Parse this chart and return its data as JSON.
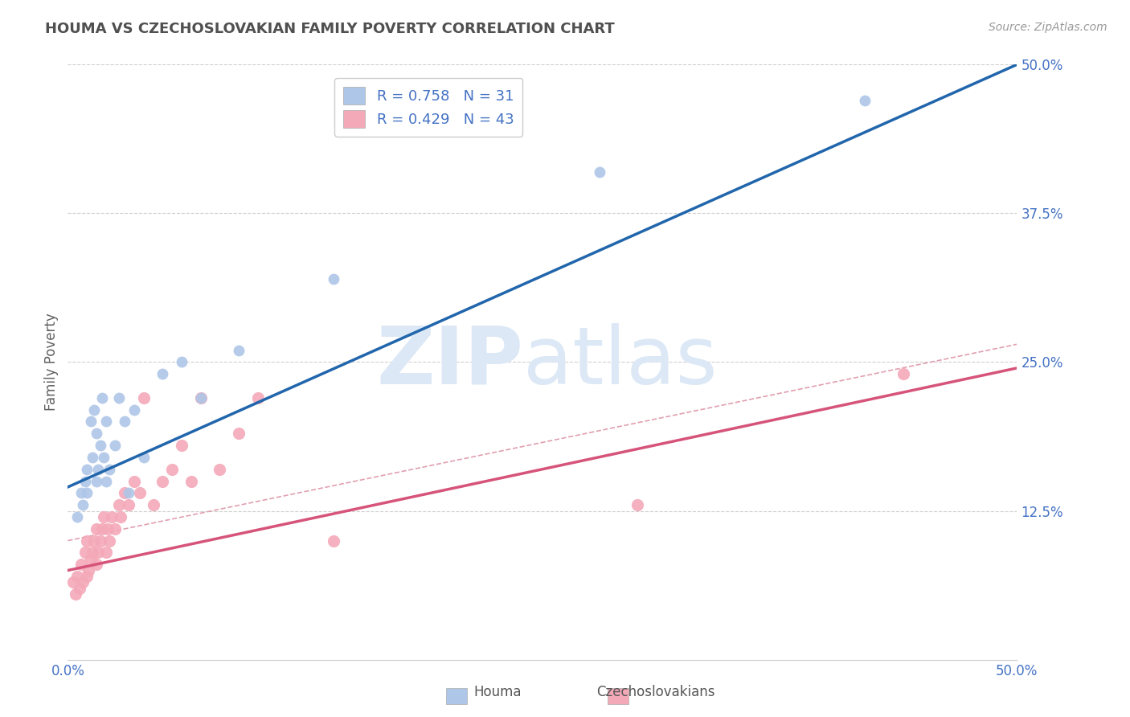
{
  "title": "HOUMA VS CZECHOSLOVAKIAN FAMILY POVERTY CORRELATION CHART",
  "source_text": "Source: ZipAtlas.com",
  "ylabel": "Family Poverty",
  "xlim": [
    0.0,
    0.5
  ],
  "ylim": [
    0.0,
    0.5
  ],
  "ytick_labels": [
    "12.5%",
    "25.0%",
    "37.5%",
    "50.0%"
  ],
  "ytick_values": [
    0.125,
    0.25,
    0.375,
    0.5
  ],
  "houma_R": 0.758,
  "houma_N": 31,
  "czech_R": 0.429,
  "czech_N": 43,
  "houma_color": "#aec6e8",
  "houma_line_color": "#2166ac",
  "czech_color": "#f4a9b8",
  "czech_line_color": "#d6547a",
  "dashed_line_color": "#e0a0b0",
  "background_color": "#ffffff",
  "grid_color": "#d0d0d0",
  "title_color": "#505050",
  "axis_label_color": "#606060",
  "tick_label_color": "#4472c4",
  "houma_scatter_x": [
    0.005,
    0.007,
    0.008,
    0.009,
    0.01,
    0.01,
    0.012,
    0.013,
    0.014,
    0.015,
    0.015,
    0.016,
    0.017,
    0.018,
    0.019,
    0.02,
    0.02,
    0.022,
    0.025,
    0.027,
    0.03,
    0.032,
    0.035,
    0.04,
    0.05,
    0.06,
    0.07,
    0.09,
    0.14,
    0.28,
    0.42
  ],
  "houma_scatter_y": [
    0.12,
    0.14,
    0.13,
    0.15,
    0.14,
    0.16,
    0.2,
    0.17,
    0.21,
    0.15,
    0.19,
    0.16,
    0.18,
    0.22,
    0.17,
    0.2,
    0.15,
    0.16,
    0.18,
    0.22,
    0.2,
    0.14,
    0.21,
    0.17,
    0.24,
    0.25,
    0.22,
    0.26,
    0.32,
    0.41,
    0.47
  ],
  "czech_scatter_x": [
    0.003,
    0.004,
    0.005,
    0.006,
    0.007,
    0.008,
    0.009,
    0.01,
    0.01,
    0.011,
    0.012,
    0.013,
    0.014,
    0.015,
    0.015,
    0.016,
    0.017,
    0.018,
    0.019,
    0.02,
    0.021,
    0.022,
    0.023,
    0.025,
    0.027,
    0.028,
    0.03,
    0.032,
    0.035,
    0.038,
    0.04,
    0.045,
    0.05,
    0.055,
    0.06,
    0.065,
    0.07,
    0.08,
    0.09,
    0.1,
    0.14,
    0.3,
    0.44
  ],
  "czech_scatter_y": [
    0.065,
    0.055,
    0.07,
    0.06,
    0.08,
    0.065,
    0.09,
    0.07,
    0.1,
    0.075,
    0.085,
    0.09,
    0.1,
    0.08,
    0.11,
    0.09,
    0.1,
    0.11,
    0.12,
    0.09,
    0.11,
    0.1,
    0.12,
    0.11,
    0.13,
    0.12,
    0.14,
    0.13,
    0.15,
    0.14,
    0.22,
    0.13,
    0.15,
    0.16,
    0.18,
    0.15,
    0.22,
    0.16,
    0.19,
    0.22,
    0.1,
    0.13,
    0.24
  ],
  "houma_line_x0": 0.0,
  "houma_line_y0": 0.145,
  "houma_line_x1": 0.5,
  "houma_line_y1": 0.5,
  "czech_line_x0": 0.0,
  "czech_line_y0": 0.075,
  "czech_line_x1": 0.5,
  "czech_line_y1": 0.245,
  "dash_line_x0": 0.0,
  "dash_line_y0": 0.1,
  "dash_line_x1": 0.5,
  "dash_line_y1": 0.265,
  "legend_R_color": "#4472c4",
  "watermark_zip": "ZIP",
  "watermark_atlas": "atlas",
  "watermark_color": "#dce8f5",
  "watermark_fontsize": 72
}
